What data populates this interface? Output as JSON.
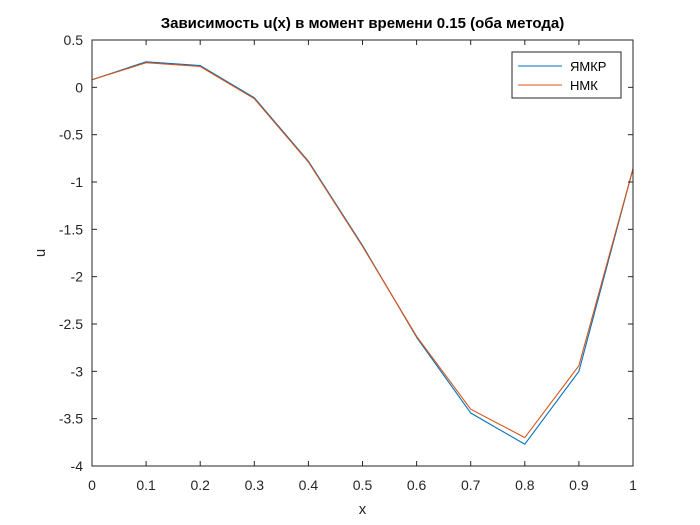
{
  "window": {
    "background": "#f0f0f0"
  },
  "chart_data": {
    "type": "line",
    "title": "Зависимость u(x) в момент времени 0.15 (оба метода)",
    "xlabel": "x",
    "ylabel": "u",
    "xlim": [
      0,
      1
    ],
    "ylim": [
      -4,
      0.5
    ],
    "x_ticks": [
      "0",
      "0.1",
      "0.2",
      "0.3",
      "0.4",
      "0.5",
      "0.6",
      "0.7",
      "0.8",
      "0.9",
      "1"
    ],
    "y_ticks": [
      "0.5",
      "0",
      "-0.5",
      "-1",
      "-1.5",
      "-2",
      "-2.5",
      "-3",
      "-3.5",
      "-4"
    ],
    "grid": false,
    "legend_position": "top-right",
    "x": [
      0,
      0.1,
      0.2,
      0.3,
      0.4,
      0.5,
      0.6,
      0.7,
      0.8,
      0.9,
      1.0
    ],
    "series": [
      {
        "name": "ЯМКР",
        "color": "#0072bd",
        "values": [
          0.08,
          0.27,
          0.23,
          -0.11,
          -0.78,
          -1.67,
          -2.64,
          -3.44,
          -3.77,
          -3.0,
          -0.86
        ]
      },
      {
        "name": "НМК",
        "color": "#d95319",
        "values": [
          0.08,
          0.26,
          0.22,
          -0.12,
          -0.79,
          -1.68,
          -2.63,
          -3.4,
          -3.7,
          -2.94,
          -0.86
        ]
      }
    ]
  }
}
